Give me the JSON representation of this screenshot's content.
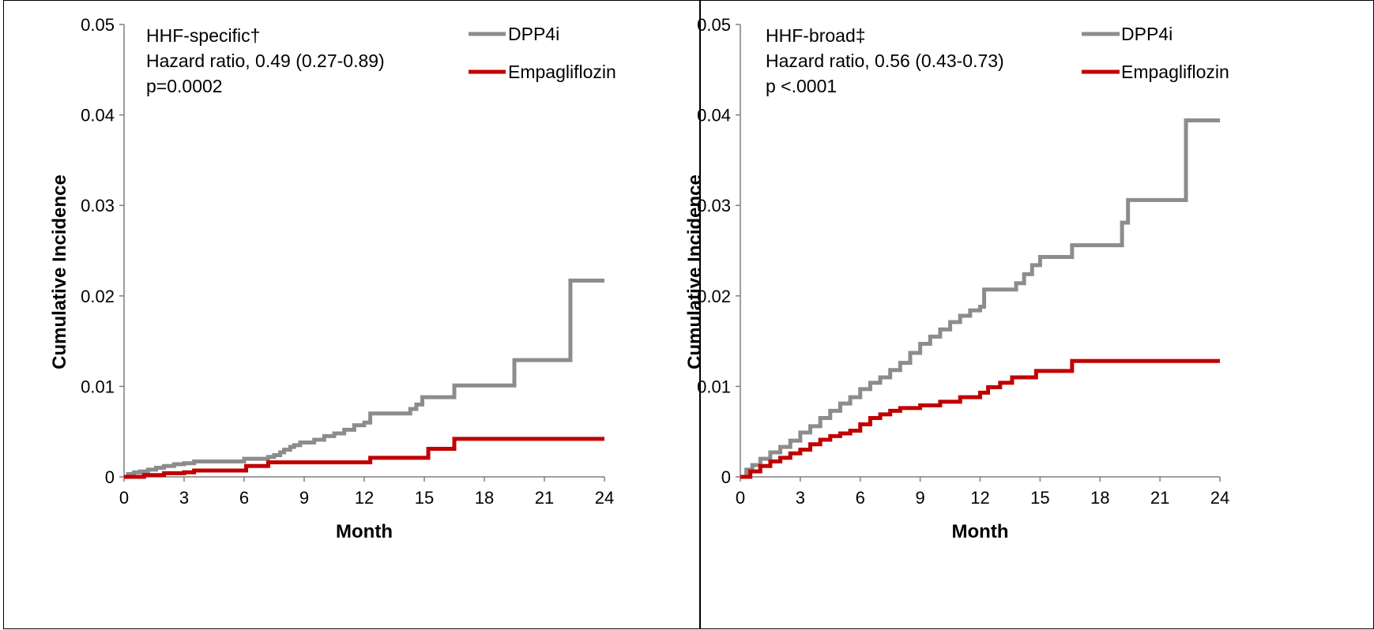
{
  "colors": {
    "dpp4i": "#8c8c8c",
    "empagliflozin": "#c00000",
    "axis": "#7f7f7f"
  },
  "chart_data": [
    {
      "type": "line",
      "step": true,
      "xlabel": "Month",
      "ylabel": "Cumulative Incidence",
      "xticks": [
        "0",
        "3",
        "6",
        "9",
        "12",
        "15",
        "18",
        "21",
        "24"
      ],
      "yticks": [
        "0",
        "0.01",
        "0.02",
        "0.03",
        "0.04",
        "0.05"
      ],
      "xlim": [
        0,
        24
      ],
      "ylim": [
        0,
        0.05
      ],
      "grid": false,
      "legend_position": "top-right",
      "annotation_lines": [
        "HHF-specific†",
        "Hazard ratio, 0.49  (0.27-0.89)",
        "p=0.0002"
      ],
      "series": [
        {
          "name": "DPP4i",
          "color": "#8c8c8c",
          "x": [
            0,
            0.2,
            0.5,
            0.8,
            1.2,
            1.6,
            2.0,
            2.5,
            3.0,
            3.5,
            6.0,
            7.2,
            7.5,
            7.8,
            8.0,
            8.3,
            8.5,
            8.8,
            9.0,
            9.5,
            10.0,
            10.5,
            11.0,
            11.5,
            12.0,
            12.3,
            14.3,
            14.6,
            14.9,
            16.5,
            19.5,
            22.3,
            24
          ],
          "y": [
            0,
            0.0003,
            0.0005,
            0.0006,
            0.0008,
            0.001,
            0.0012,
            0.0014,
            0.0015,
            0.0017,
            0.002,
            0.0022,
            0.0024,
            0.0027,
            0.003,
            0.0033,
            0.0035,
            0.0038,
            0.0038,
            0.0041,
            0.0045,
            0.0048,
            0.0052,
            0.0057,
            0.006,
            0.007,
            0.0075,
            0.008,
            0.0088,
            0.0101,
            0.0129,
            0.0217,
            0.0217
          ]
        },
        {
          "name": "Empagliflozin",
          "color": "#c00000",
          "x": [
            0,
            1.0,
            2.0,
            3.0,
            3.5,
            6.1,
            7.2,
            12.3,
            15.2,
            16.5,
            24
          ],
          "y": [
            0,
            0.0002,
            0.0004,
            0.0005,
            0.0007,
            0.0012,
            0.0016,
            0.0021,
            0.0031,
            0.0042,
            0.0042
          ]
        }
      ]
    },
    {
      "type": "line",
      "step": true,
      "xlabel": "Month",
      "ylabel": "Cumulative Incidence",
      "xticks": [
        "0",
        "3",
        "6",
        "9",
        "12",
        "15",
        "18",
        "21",
        "24"
      ],
      "yticks": [
        "0",
        "0.01",
        "0.02",
        "0.03",
        "0.04",
        "0.05"
      ],
      "xlim": [
        0,
        24
      ],
      "ylim": [
        0,
        0.05
      ],
      "grid": false,
      "legend_position": "top-right",
      "annotation_lines": [
        "HHF-broad‡",
        "Hazard ratio, 0.56  (0.43-0.73)",
        "p <.0001"
      ],
      "series": [
        {
          "name": "DPP4i",
          "color": "#8c8c8c",
          "x": [
            0,
            0.3,
            0.6,
            1.0,
            1.5,
            2.0,
            2.5,
            3.0,
            3.5,
            4.0,
            4.5,
            5.0,
            5.5,
            6.0,
            6.5,
            7.0,
            7.5,
            8.0,
            8.5,
            9.0,
            9.5,
            10.0,
            10.5,
            11.0,
            11.5,
            12.0,
            12.2,
            13.8,
            14.2,
            14.6,
            15.0,
            16.6,
            19.1,
            19.4,
            22.3,
            24
          ],
          "y": [
            0,
            0.0008,
            0.0013,
            0.002,
            0.0027,
            0.0033,
            0.004,
            0.0049,
            0.0056,
            0.0065,
            0.0073,
            0.0081,
            0.0088,
            0.0097,
            0.0104,
            0.011,
            0.0118,
            0.0126,
            0.0137,
            0.0147,
            0.0155,
            0.0163,
            0.0171,
            0.0178,
            0.0184,
            0.0188,
            0.0207,
            0.0214,
            0.0224,
            0.0234,
            0.0243,
            0.0256,
            0.0281,
            0.0306,
            0.0394,
            0.0394
          ]
        },
        {
          "name": "Empagliflozin",
          "color": "#c00000",
          "x": [
            0,
            0.5,
            1.0,
            1.5,
            2.0,
            2.5,
            3.0,
            3.5,
            4.0,
            4.5,
            5.0,
            5.5,
            6.0,
            6.5,
            7.0,
            7.5,
            8.0,
            9.0,
            10.0,
            11.0,
            12.0,
            12.4,
            13.0,
            13.6,
            14.8,
            16.6,
            24
          ],
          "y": [
            0,
            0.0006,
            0.0012,
            0.0017,
            0.0021,
            0.0026,
            0.003,
            0.0036,
            0.0041,
            0.0045,
            0.0048,
            0.0051,
            0.0058,
            0.0065,
            0.0069,
            0.0073,
            0.0076,
            0.0079,
            0.0083,
            0.0088,
            0.0093,
            0.0099,
            0.0104,
            0.011,
            0.0117,
            0.0128,
            0.0128
          ]
        }
      ]
    }
  ]
}
